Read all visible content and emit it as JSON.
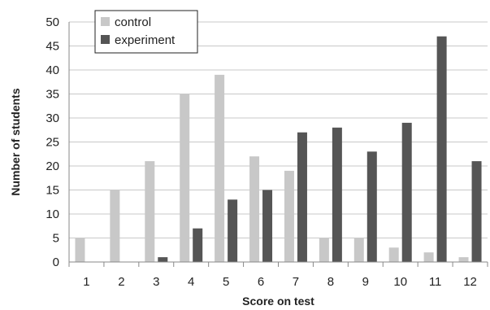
{
  "chart_data": {
    "type": "bar",
    "title": "",
    "xlabel": "Score on test",
    "ylabel": "Number of students",
    "categories": [
      "1",
      "2",
      "3",
      "4",
      "5",
      "6",
      "7",
      "8",
      "9",
      "10",
      "11",
      "12"
    ],
    "series": [
      {
        "name": "control",
        "color": "#c8c8c8",
        "values": [
          5,
          15,
          21,
          35,
          39,
          22,
          19,
          5,
          5,
          3,
          2,
          1
        ]
      },
      {
        "name": "experiment",
        "color": "#555555",
        "values": [
          0,
          0,
          1,
          7,
          13,
          15,
          27,
          28,
          23,
          29,
          47,
          21
        ]
      }
    ],
    "ylim": [
      0,
      50
    ],
    "yticks": [
      0,
      5,
      10,
      15,
      20,
      25,
      30,
      35,
      40,
      45,
      50
    ],
    "grid": true,
    "legend_position": "top-left"
  }
}
